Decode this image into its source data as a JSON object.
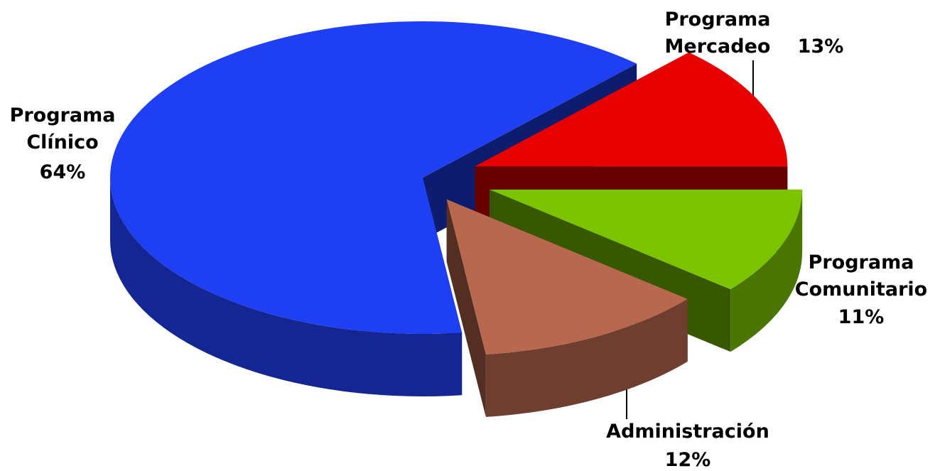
{
  "chart_data": {
    "type": "pie",
    "categories": [
      "Programa Clínico",
      "Programa Mercadeo",
      "Programa Comunitario",
      "Administración"
    ],
    "values": [
      64,
      13,
      11,
      12
    ],
    "value_labels": [
      "64%",
      "13%",
      "11%",
      "12%"
    ],
    "colors": [
      "#1f3ff2",
      "#e60000",
      "#7cc400",
      "#b8684e"
    ]
  }
}
